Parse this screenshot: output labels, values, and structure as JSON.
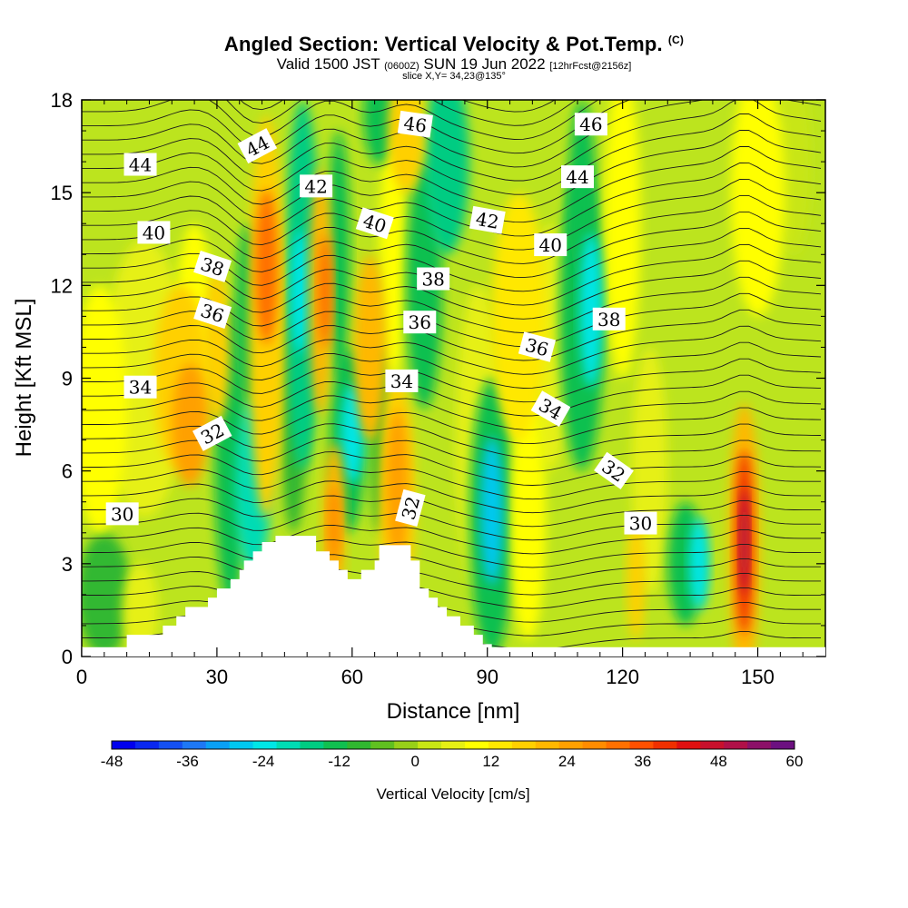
{
  "header": {
    "title": "Angled Section: Vertical Velocity & Pot.Temp.",
    "title_mark": "(C)",
    "valid_prefix": "Valid 1500 JST",
    "valid_utc": "(0600Z)",
    "valid_date": "SUN 19 Jun 2022",
    "forecast": "[12hrFcst@2156z]",
    "slice": "slice X,Y= 34,23@135°"
  },
  "chart_data": {
    "type": "heatmap",
    "xlabel": "Distance [nm]",
    "ylabel": "Height [Kft MSL]",
    "xlim": [
      0,
      165
    ],
    "ylim": [
      0,
      18
    ],
    "x_ticks": [
      "0",
      "30",
      "60",
      "90",
      "120",
      "150"
    ],
    "y_ticks": [
      "0",
      "3",
      "6",
      "9",
      "12",
      "15",
      "18"
    ],
    "colorbar": {
      "title": "Vertical Velocity [cm/s]",
      "tick_labels": [
        "-48",
        "-36",
        "-24",
        "-12",
        "0",
        "12",
        "24",
        "36",
        "48",
        "60"
      ],
      "min": -48,
      "max": 60,
      "step": 4,
      "colors": [
        "#0000ee",
        "#0a28f0",
        "#1450f2",
        "#1e78f5",
        "#0aa0f5",
        "#00c8f0",
        "#00e6e6",
        "#00dcb4",
        "#00cc82",
        "#10c050",
        "#30b830",
        "#60c020",
        "#98d018",
        "#c8e614",
        "#e6f014",
        "#ffff00",
        "#ffe800",
        "#ffd000",
        "#ffb800",
        "#ffa000",
        "#ff8c00",
        "#ff7000",
        "#ff5000",
        "#f03000",
        "#e01010",
        "#c8102c",
        "#b01048",
        "#8c1068",
        "#6c1080"
      ]
    },
    "terrain_top_kft": [
      [
        10,
        0.7
      ],
      [
        16,
        0.7
      ],
      [
        18,
        1.0
      ],
      [
        21,
        1.3
      ],
      [
        23,
        1.6
      ],
      [
        26,
        1.6
      ],
      [
        28,
        1.9
      ],
      [
        30,
        2.2
      ],
      [
        33,
        2.5
      ],
      [
        35,
        2.8
      ],
      [
        36,
        3.1
      ],
      [
        38,
        3.4
      ],
      [
        40,
        3.7
      ],
      [
        43,
        3.9
      ],
      [
        52,
        3.9
      ],
      [
        52,
        3.4
      ],
      [
        55,
        3.1
      ],
      [
        57,
        2.8
      ],
      [
        59,
        2.5
      ],
      [
        62,
        2.8
      ],
      [
        65,
        3.1
      ],
      [
        66,
        3.6
      ],
      [
        72,
        3.6
      ],
      [
        73,
        3.1
      ],
      [
        75,
        2.2
      ],
      [
        77,
        1.9
      ],
      [
        79,
        1.6
      ],
      [
        81,
        1.3
      ],
      [
        84,
        1.0
      ],
      [
        87,
        0.7
      ],
      [
        89,
        0.4
      ],
      [
        91,
        0.2
      ]
    ],
    "theta_labels": [
      {
        "text": "44",
        "x": 13,
        "y": 15.9,
        "angle": 0
      },
      {
        "text": "44",
        "x": 39,
        "y": 16.5,
        "angle": -28
      },
      {
        "text": "42",
        "x": 52,
        "y": 15.2,
        "angle": 0
      },
      {
        "text": "46",
        "x": 74,
        "y": 17.2,
        "angle": 8
      },
      {
        "text": "46",
        "x": 113,
        "y": 17.2,
        "angle": 0
      },
      {
        "text": "44",
        "x": 110,
        "y": 15.5,
        "angle": 0
      },
      {
        "text": "40",
        "x": 16,
        "y": 13.7,
        "angle": 0
      },
      {
        "text": "38",
        "x": 29,
        "y": 12.6,
        "angle": 18
      },
      {
        "text": "40",
        "x": 65,
        "y": 14.0,
        "angle": 18
      },
      {
        "text": "42",
        "x": 90,
        "y": 14.1,
        "angle": 10
      },
      {
        "text": "40",
        "x": 104,
        "y": 13.3,
        "angle": 0
      },
      {
        "text": "38",
        "x": 78,
        "y": 12.2,
        "angle": 0
      },
      {
        "text": "36",
        "x": 29,
        "y": 11.1,
        "angle": 18
      },
      {
        "text": "36",
        "x": 75,
        "y": 10.8,
        "angle": 0
      },
      {
        "text": "36",
        "x": 101,
        "y": 10.0,
        "angle": 15
      },
      {
        "text": "38",
        "x": 117,
        "y": 10.9,
        "angle": 0
      },
      {
        "text": "34",
        "x": 13,
        "y": 8.7,
        "angle": 0
      },
      {
        "text": "34",
        "x": 71,
        "y": 8.9,
        "angle": 0
      },
      {
        "text": "34",
        "x": 104,
        "y": 8.0,
        "angle": 30
      },
      {
        "text": "32",
        "x": 29,
        "y": 7.2,
        "angle": -28
      },
      {
        "text": "32",
        "x": 118,
        "y": 6.0,
        "angle": 35
      },
      {
        "text": "32",
        "x": 73,
        "y": 4.8,
        "angle": -75
      },
      {
        "text": "30",
        "x": 9,
        "y": 4.6,
        "angle": 0
      },
      {
        "text": "30",
        "x": 124,
        "y": 4.3,
        "angle": 0
      }
    ]
  }
}
